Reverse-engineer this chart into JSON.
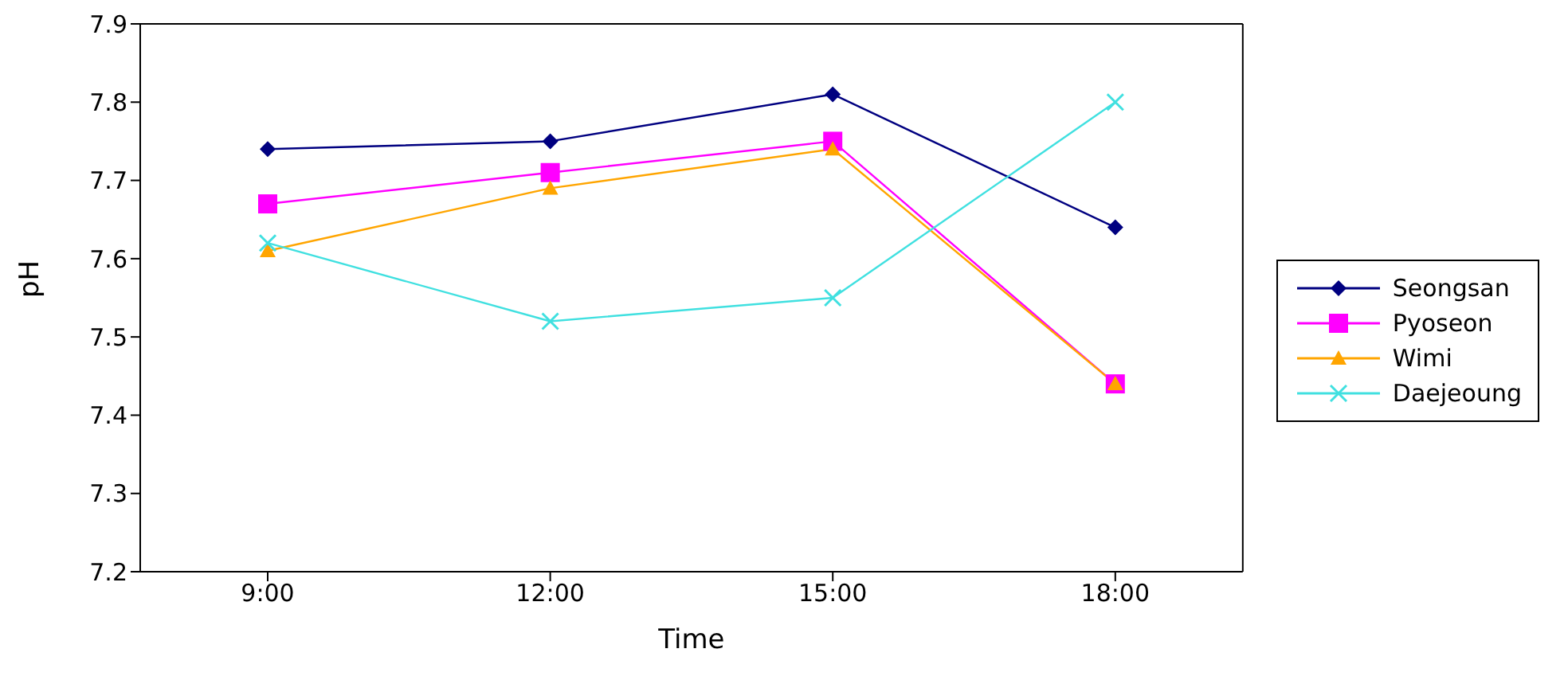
{
  "chart_data": {
    "type": "line",
    "xlabel": "Time",
    "ylabel": "pH",
    "categories": [
      "9:00",
      "12:00",
      "15:00",
      "18:00"
    ],
    "ylim": [
      7.2,
      7.9
    ],
    "yticks": [
      7.2,
      7.3,
      7.4,
      7.5,
      7.6,
      7.7,
      7.8,
      7.9
    ],
    "grid": false,
    "legend": "right",
    "series": [
      {
        "name": "Seongsan",
        "color": "#000080",
        "marker": "diamond",
        "values": [
          7.74,
          7.75,
          7.81,
          7.64
        ]
      },
      {
        "name": "Pyoseon",
        "color": "#ff00ff",
        "marker": "square",
        "values": [
          7.67,
          7.71,
          7.75,
          7.44
        ]
      },
      {
        "name": "Wimi",
        "color": "#ffa500",
        "marker": "triangle",
        "values": [
          7.61,
          7.69,
          7.74,
          7.44
        ]
      },
      {
        "name": "Daejeoung",
        "color": "#40e0e0",
        "marker": "cross",
        "values": [
          7.62,
          7.52,
          7.55,
          7.8
        ]
      }
    ]
  }
}
